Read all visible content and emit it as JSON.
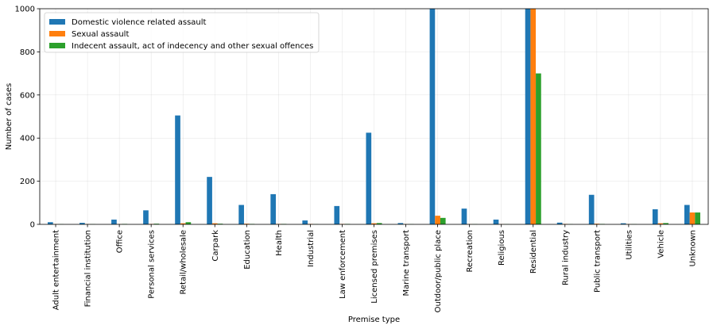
{
  "chart_data": {
    "type": "bar",
    "title": "",
    "xlabel": "Premise type",
    "ylabel": "Number of cases",
    "ylim": [
      0,
      1000
    ],
    "yticks": [
      0,
      200,
      400,
      600,
      800,
      1000
    ],
    "grid": true,
    "legend_position": "top-left",
    "categories": [
      "Adult entertainment",
      "Financial institution",
      "Office",
      "Personal services",
      "Retail/wholesale",
      "Carpark",
      "Education",
      "Health",
      "Industrial",
      "Law enforcement",
      "Licensed premises",
      "Marine transport",
      "Outdoor/public place",
      "Recreation",
      "Religious",
      "Residential",
      "Rural industry",
      "Public transport",
      "Utilities",
      "Vehicle",
      "Unknown"
    ],
    "series": [
      {
        "name": "Domestic violence related assault",
        "color": "#1f77b4",
        "values": [
          10,
          7,
          22,
          65,
          505,
          220,
          90,
          140,
          18,
          85,
          425,
          6,
          1000,
          73,
          22,
          1000,
          8,
          137,
          5,
          70,
          90
        ]
      },
      {
        "name": "Sexual assault",
        "color": "#ff7f0e",
        "values": [
          1,
          1,
          1,
          2,
          5,
          5,
          3,
          2,
          2,
          2,
          5,
          1,
          40,
          1,
          1,
          1000,
          2,
          3,
          1,
          5,
          55
        ]
      },
      {
        "name": "Indecent assault, act of indecency and other sexual offences",
        "color": "#2ca02c",
        "values": [
          1,
          1,
          2,
          3,
          10,
          3,
          2,
          2,
          1,
          2,
          6,
          1,
          30,
          1,
          1,
          700,
          1,
          2,
          1,
          6,
          55
        ]
      }
    ]
  }
}
